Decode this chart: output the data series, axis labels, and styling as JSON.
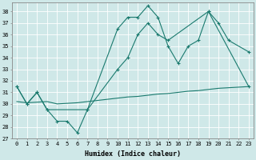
{
  "xlabel": "Humidex (Indice chaleur)",
  "bg_color": "#cfe8e8",
  "grid_color": "#b0d0d0",
  "line_color": "#1a7a6e",
  "xlim": [
    -0.5,
    23.5
  ],
  "ylim": [
    27,
    38.8
  ],
  "yticks": [
    27,
    28,
    29,
    30,
    31,
    32,
    33,
    34,
    35,
    36,
    37,
    38
  ],
  "xticks": [
    0,
    1,
    2,
    3,
    4,
    5,
    6,
    7,
    8,
    9,
    10,
    11,
    12,
    13,
    14,
    15,
    16,
    17,
    18,
    19,
    20,
    21,
    22,
    23
  ],
  "line1_x": [
    0,
    1,
    2,
    3,
    4,
    5,
    6,
    7,
    10,
    11,
    12,
    13,
    14,
    15,
    16,
    17,
    18,
    19,
    20,
    21,
    23
  ],
  "line1_y": [
    31.5,
    30.0,
    31.0,
    29.5,
    28.5,
    28.5,
    27.5,
    29.5,
    36.5,
    37.5,
    37.5,
    38.5,
    37.5,
    35.0,
    33.5,
    35.0,
    35.5,
    38.0,
    37.0,
    35.5,
    34.5
  ],
  "line2_x": [
    0,
    1,
    2,
    3,
    7,
    10,
    11,
    12,
    13,
    14,
    15,
    19,
    23
  ],
  "line2_y": [
    31.5,
    30.0,
    31.0,
    29.5,
    29.5,
    33.0,
    34.0,
    36.0,
    37.0,
    36.0,
    35.5,
    38.0,
    31.5
  ],
  "line3_x": [
    0,
    1,
    2,
    3,
    4,
    5,
    6,
    7,
    8,
    9,
    10,
    11,
    12,
    13,
    14,
    15,
    16,
    17,
    18,
    19,
    20,
    21,
    22,
    23
  ],
  "line3_y": [
    30.2,
    30.1,
    30.15,
    30.2,
    30.0,
    30.05,
    30.1,
    30.2,
    30.3,
    30.4,
    30.5,
    30.6,
    30.65,
    30.75,
    30.85,
    30.9,
    31.0,
    31.1,
    31.15,
    31.25,
    31.35,
    31.4,
    31.45,
    31.5
  ]
}
